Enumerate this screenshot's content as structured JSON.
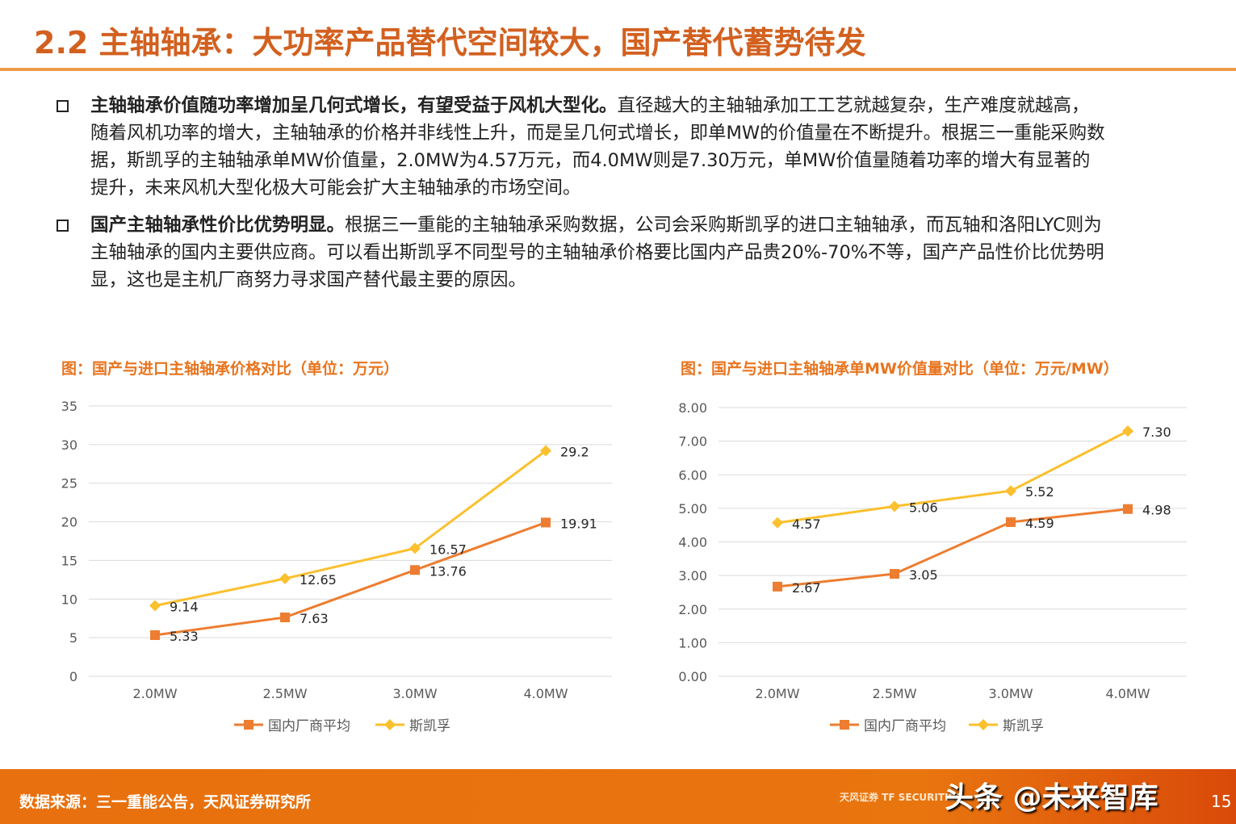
{
  "title": "2.2 主轴轴承：大功率产品替代空间较大，国产替代蓄势待发",
  "bullets": [
    {
      "bold": "主轴轴承价值随功率增加呈几何式增长，有望受益于风机大型化。",
      "text": "直径越大的主轴轴承加工工艺就越复杂，生产难度就越高，随着风机功率的增大，主轴轴承的价格并非线性上升，而是呈几何式增长，即单MW的价值量在不断提升。根据三一重能采购数据，斯凯孚的主轴轴承单MW价值量，2.0MW为4.57万元，而4.0MW则是7.30万元，单MW价值量随着功率的增大有显著的提升，未来风机大型化极大可能会扩大主轴轴承的市场空间。"
    },
    {
      "bold": "国产主轴轴承性价比优势明显。",
      "text": "根据三一重能的主轴轴承采购数据，公司会采购斯凯孚的进口主轴轴承，而瓦轴和洛阳LYC则为主轴轴承的国内主要供应商。可以看出斯凯孚不同型号的主轴轴承价格要比国内产品贵20%-70%不等，国产产品性价比优势明显，这也是主机厂商努力寻求国产替代最主要的原因。"
    }
  ],
  "chart_data": [
    {
      "type": "line",
      "title": "图：国产与进口主轴轴承价格对比（单位：万元）",
      "categories": [
        "2.0MW",
        "2.5MW",
        "3.0MW",
        "4.0MW"
      ],
      "ylim": [
        0,
        35
      ],
      "yticks": [
        "0",
        "5",
        "10",
        "15",
        "20",
        "25",
        "30",
        "35"
      ],
      "grid": true,
      "legend": "bottom",
      "series": [
        {
          "name": "国内厂商平均",
          "values": [
            5.33,
            7.63,
            13.76,
            19.91
          ],
          "labels": [
            "5.33",
            "7.63",
            "13.76",
            "19.91"
          ],
          "color": "#ED7D31",
          "marker": "square"
        },
        {
          "name": "斯凯孚",
          "values": [
            9.14,
            12.65,
            16.57,
            29.2
          ],
          "labels": [
            "9.14",
            "12.65",
            "16.57",
            "29.2"
          ],
          "color": "#FBC02D",
          "marker": "diamond"
        }
      ]
    },
    {
      "type": "line",
      "title": "图：国产与进口主轴轴承单MW价值量对比（单位：万元/MW）",
      "categories": [
        "2.0MW",
        "2.5MW",
        "3.0MW",
        "4.0MW"
      ],
      "ylim": [
        0,
        8
      ],
      "yticks": [
        "0.00",
        "1.00",
        "2.00",
        "3.00",
        "4.00",
        "5.00",
        "6.00",
        "7.00",
        "8.00"
      ],
      "grid": true,
      "legend": "bottom",
      "series": [
        {
          "name": "国内厂商平均",
          "values": [
            2.67,
            3.05,
            4.59,
            4.98
          ],
          "labels": [
            "2.67",
            "3.05",
            "4.59",
            "4.98"
          ],
          "color": "#ED7D31",
          "marker": "square"
        },
        {
          "name": "斯凯孚",
          "values": [
            4.57,
            5.06,
            5.52,
            7.3
          ],
          "labels": [
            "4.57",
            "5.06",
            "5.52",
            "7.30"
          ],
          "color": "#FBC02D",
          "marker": "diamond"
        }
      ]
    }
  ],
  "footer": {
    "source": "数据来源：三一重能公告，天风证券研究所",
    "watermark": "头条 @未来智库",
    "logo": "天风证券 TF SECURITIES",
    "page": "15"
  }
}
